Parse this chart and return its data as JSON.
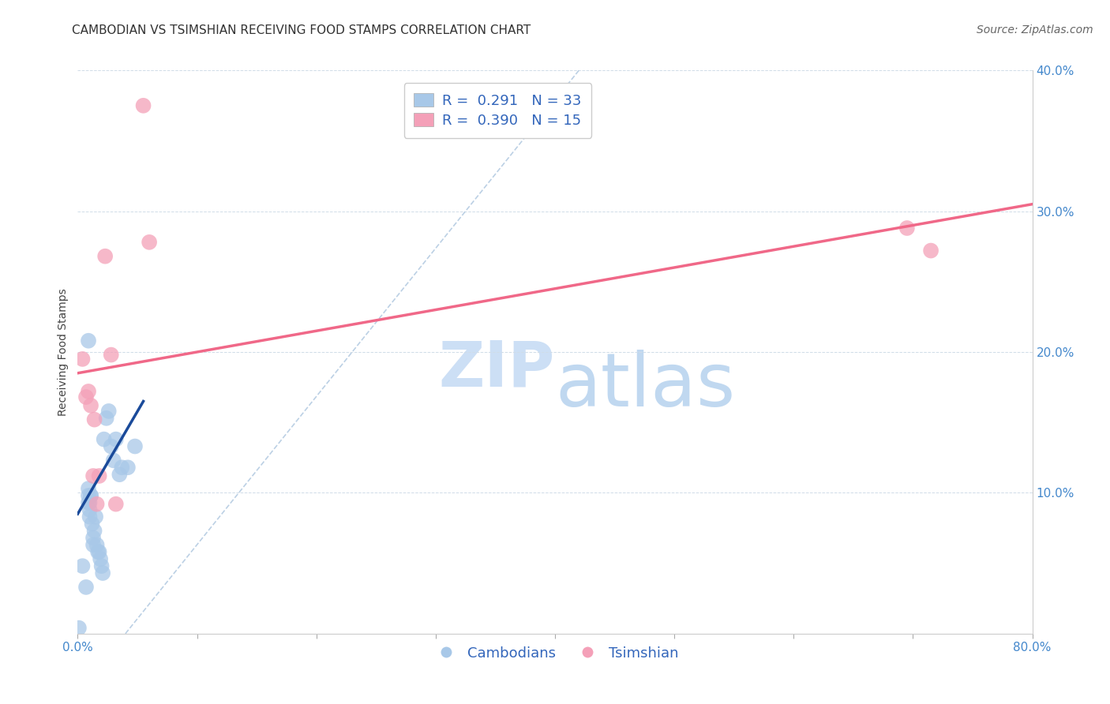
{
  "title": "CAMBODIAN VS TSIMSHIAN RECEIVING FOOD STAMPS CORRELATION CHART",
  "source": "Source: ZipAtlas.com",
  "ylabel": "Receiving Food Stamps",
  "watermark_zip": "ZIP",
  "watermark_atlas": "atlas",
  "xlim": [
    0.0,
    0.8
  ],
  "ylim": [
    0.0,
    0.4
  ],
  "xticks": [
    0.0,
    0.1,
    0.2,
    0.3,
    0.4,
    0.5,
    0.6,
    0.7,
    0.8
  ],
  "yticks": [
    0.0,
    0.1,
    0.2,
    0.3,
    0.4
  ],
  "xtick_labels_bottom": [
    "0.0%",
    "",
    "",
    "",
    "",
    "",
    "",
    "",
    "80.0%"
  ],
  "ytick_labels_right": [
    "",
    "10.0%",
    "20.0%",
    "30.0%",
    "40.0%"
  ],
  "cambodian_color": "#a8c8e8",
  "tsimshian_color": "#f4a0b8",
  "cambodian_line_color": "#1a4a9a",
  "tsimshian_line_color": "#f06888",
  "dashed_line_color": "#b0c8e0",
  "R_cambodian": 0.291,
  "N_cambodian": 33,
  "R_tsimshian": 0.39,
  "N_tsimshian": 15,
  "legend_label_cambodian": "Cambodians",
  "legend_label_tsimshian": "Tsimshian",
  "cambodian_x": [
    0.001,
    0.004,
    0.007,
    0.009,
    0.009,
    0.009,
    0.01,
    0.01,
    0.01,
    0.011,
    0.011,
    0.012,
    0.013,
    0.013,
    0.014,
    0.015,
    0.016,
    0.017,
    0.018,
    0.019,
    0.02,
    0.021,
    0.022,
    0.024,
    0.026,
    0.028,
    0.03,
    0.032,
    0.035,
    0.037,
    0.042,
    0.048,
    0.009
  ],
  "cambodian_y": [
    0.004,
    0.048,
    0.033,
    0.093,
    0.098,
    0.103,
    0.083,
    0.088,
    0.093,
    0.098,
    0.098,
    0.078,
    0.068,
    0.063,
    0.073,
    0.083,
    0.063,
    0.058,
    0.058,
    0.053,
    0.048,
    0.043,
    0.138,
    0.153,
    0.158,
    0.133,
    0.123,
    0.138,
    0.113,
    0.118,
    0.118,
    0.133,
    0.208
  ],
  "tsimshian_x": [
    0.004,
    0.007,
    0.009,
    0.011,
    0.013,
    0.014,
    0.016,
    0.018,
    0.023,
    0.028,
    0.032,
    0.055,
    0.06,
    0.695,
    0.715
  ],
  "tsimshian_y": [
    0.195,
    0.168,
    0.172,
    0.162,
    0.112,
    0.152,
    0.092,
    0.112,
    0.268,
    0.198,
    0.092,
    0.375,
    0.278,
    0.288,
    0.272
  ],
  "tsimshian_line_x0": 0.0,
  "tsimshian_line_y0": 0.185,
  "tsimshian_line_x1": 0.8,
  "tsimshian_line_y1": 0.305,
  "cambodian_line_x0": 0.0,
  "cambodian_line_y0": 0.085,
  "cambodian_line_x1": 0.055,
  "cambodian_line_y1": 0.165,
  "dash_line_x0": 0.04,
  "dash_line_y0": 0.0,
  "dash_line_x1": 0.42,
  "dash_line_y1": 0.4,
  "background_color": "#ffffff",
  "grid_color": "#d0dce8",
  "title_fontsize": 11,
  "axis_label_fontsize": 10,
  "tick_fontsize": 11,
  "legend_fontsize": 13,
  "watermark_fontsize_zip": 58,
  "watermark_fontsize_atlas": 68,
  "source_fontsize": 10
}
